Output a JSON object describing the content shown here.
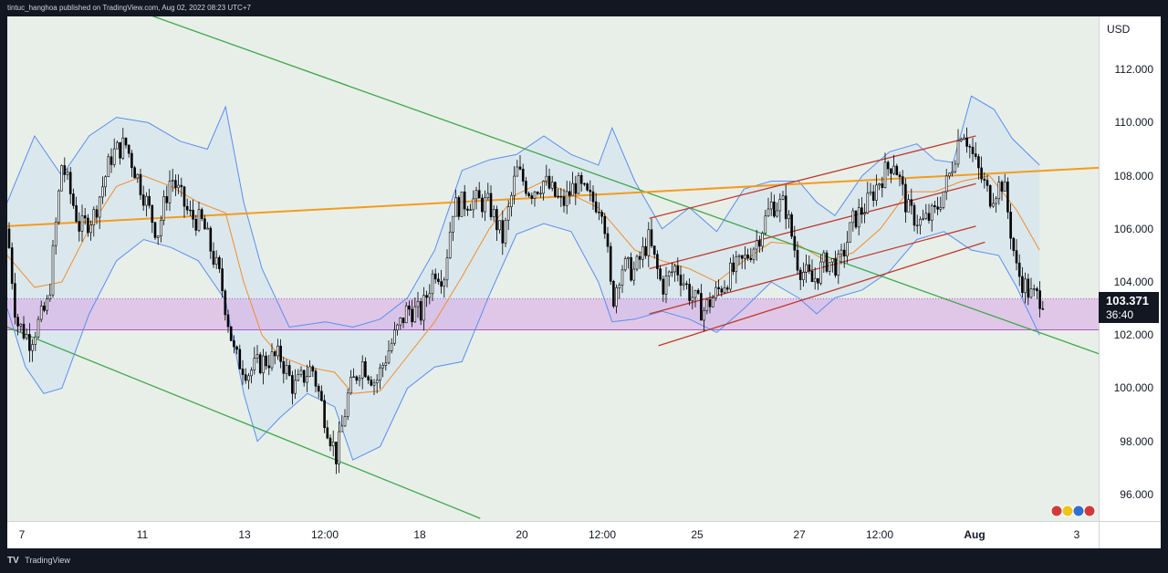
{
  "header": {
    "text": "tintuc_hanghoa published on TradingView.com, Aug 02, 2022 08:23 UTC+7"
  },
  "footer": {
    "logo": "TV",
    "brand": "TradingView"
  },
  "price_axis": {
    "currency": "USD"
  },
  "last_price": {
    "value": "103.371",
    "countdown": "36:40"
  },
  "colors": {
    "candle": "#000000",
    "bollinger": "#5b8def",
    "basis": "#f28c28",
    "green_trend": "#3ea84a",
    "orange_trend": "#f59b1b",
    "red_channel": "#c0392b",
    "zone": "#d9a6e6",
    "band_fill": "#e6eeea"
  },
  "chart_data": {
    "type": "candlestick",
    "ylim": [
      95,
      114
    ],
    "y_ticks": [
      "112.000",
      "110.000",
      "108.000",
      "106.000",
      "104.000",
      "102.000",
      "100.000",
      "98.000",
      "96.000"
    ],
    "x_ticks": [
      {
        "label": "7",
        "bold": false
      },
      {
        "label": "11",
        "bold": false
      },
      {
        "label": "13",
        "bold": false
      },
      {
        "label": "12:00",
        "bold": false
      },
      {
        "label": "18",
        "bold": false
      },
      {
        "label": "20",
        "bold": false
      },
      {
        "label": "12:00",
        "bold": false
      },
      {
        "label": "25",
        "bold": false
      },
      {
        "label": "27",
        "bold": false
      },
      {
        "label": "12:00",
        "bold": false
      },
      {
        "label": "Aug",
        "bold": true
      },
      {
        "label": "3",
        "bold": false
      }
    ],
    "close_path": [
      [
        0.0,
        106.0
      ],
      [
        0.01,
        102.5
      ],
      [
        0.025,
        101.8
      ],
      [
        0.045,
        103.2
      ],
      [
        0.06,
        108.5
      ],
      [
        0.08,
        106.0
      ],
      [
        0.095,
        106.5
      ],
      [
        0.115,
        108.8
      ],
      [
        0.13,
        109.2
      ],
      [
        0.15,
        107.3
      ],
      [
        0.165,
        105.8
      ],
      [
        0.18,
        108.0
      ],
      [
        0.2,
        106.5
      ],
      [
        0.215,
        106.2
      ],
      [
        0.235,
        104.0
      ],
      [
        0.25,
        101.2
      ],
      [
        0.265,
        100.6
      ],
      [
        0.28,
        101.0
      ],
      [
        0.3,
        101.2
      ],
      [
        0.315,
        100.0
      ],
      [
        0.335,
        100.8
      ],
      [
        0.35,
        98.8
      ],
      [
        0.362,
        97.4
      ],
      [
        0.375,
        99.8
      ],
      [
        0.39,
        101.0
      ],
      [
        0.405,
        100.2
      ],
      [
        0.42,
        101.5
      ],
      [
        0.44,
        103.0
      ],
      [
        0.455,
        102.8
      ],
      [
        0.47,
        104.5
      ],
      [
        0.48,
        104.2
      ],
      [
        0.49,
        106.8
      ],
      [
        0.51,
        107.1
      ],
      [
        0.53,
        106.9
      ],
      [
        0.545,
        105.6
      ],
      [
        0.56,
        108.2
      ],
      [
        0.575,
        107.4
      ],
      [
        0.59,
        107.8
      ],
      [
        0.61,
        106.9
      ],
      [
        0.625,
        107.7
      ],
      [
        0.64,
        107.1
      ],
      [
        0.655,
        106.9
      ],
      [
        0.665,
        103.2
      ],
      [
        0.675,
        104.6
      ],
      [
        0.69,
        104.4
      ],
      [
        0.705,
        105.6
      ],
      [
        0.72,
        103.8
      ],
      [
        0.735,
        104.6
      ],
      [
        0.75,
        103.6
      ],
      [
        0.765,
        102.9
      ],
      [
        0.78,
        103.6
      ],
      [
        0.795,
        104.3
      ],
      [
        0.81,
        104.8
      ],
      [
        0.825,
        105.6
      ],
      [
        0.84,
        106.9
      ],
      [
        0.855,
        106.9
      ],
      [
        0.87,
        104.6
      ],
      [
        0.885,
        104.0
      ],
      [
        0.9,
        104.8
      ],
      [
        0.915,
        104.6
      ],
      [
        0.93,
        106.3
      ],
      [
        0.945,
        106.9
      ],
      [
        0.96,
        107.9
      ],
      [
        0.975,
        108.6
      ],
      [
        0.99,
        106.7
      ],
      [
        1.005,
        106.2
      ],
      [
        1.02,
        106.6
      ],
      [
        1.035,
        107.9
      ],
      [
        1.05,
        109.9
      ],
      [
        1.065,
        108.4
      ],
      [
        1.08,
        107.2
      ],
      [
        1.095,
        107.8
      ],
      [
        1.11,
        104.4
      ],
      [
        1.125,
        103.5
      ],
      [
        1.14,
        103.4
      ]
    ],
    "bollinger_upper": [
      [
        0.0,
        107.0
      ],
      [
        0.03,
        109.5
      ],
      [
        0.06,
        108.0
      ],
      [
        0.09,
        109.5
      ],
      [
        0.12,
        110.2
      ],
      [
        0.155,
        110.0
      ],
      [
        0.19,
        109.3
      ],
      [
        0.22,
        109.0
      ],
      [
        0.24,
        110.6
      ],
      [
        0.26,
        107.0
      ],
      [
        0.28,
        104.5
      ],
      [
        0.31,
        102.3
      ],
      [
        0.35,
        102.5
      ],
      [
        0.38,
        102.3
      ],
      [
        0.41,
        102.6
      ],
      [
        0.44,
        103.4
      ],
      [
        0.47,
        105.2
      ],
      [
        0.5,
        108.2
      ],
      [
        0.53,
        108.6
      ],
      [
        0.56,
        108.8
      ],
      [
        0.59,
        109.5
      ],
      [
        0.62,
        108.8
      ],
      [
        0.65,
        108.4
      ],
      [
        0.665,
        109.8
      ],
      [
        0.69,
        107.8
      ],
      [
        0.72,
        106.0
      ],
      [
        0.75,
        106.8
      ],
      [
        0.78,
        105.9
      ],
      [
        0.81,
        107.5
      ],
      [
        0.84,
        107.8
      ],
      [
        0.87,
        107.8
      ],
      [
        0.89,
        107.0
      ],
      [
        0.91,
        106.5
      ],
      [
        0.94,
        108.0
      ],
      [
        0.97,
        108.9
      ],
      [
        1.0,
        109.2
      ],
      [
        1.02,
        108.6
      ],
      [
        1.04,
        108.5
      ],
      [
        1.06,
        111.0
      ],
      [
        1.085,
        110.5
      ],
      [
        1.105,
        109.4
      ],
      [
        1.135,
        108.4
      ]
    ],
    "bollinger_lower": [
      [
        0.0,
        103.0
      ],
      [
        0.02,
        100.8
      ],
      [
        0.04,
        99.8
      ],
      [
        0.06,
        100.0
      ],
      [
        0.09,
        102.8
      ],
      [
        0.12,
        104.8
      ],
      [
        0.15,
        105.6
      ],
      [
        0.18,
        105.3
      ],
      [
        0.21,
        104.8
      ],
      [
        0.24,
        103.3
      ],
      [
        0.26,
        99.8
      ],
      [
        0.275,
        98.0
      ],
      [
        0.3,
        98.9
      ],
      [
        0.33,
        99.8
      ],
      [
        0.36,
        99.3
      ],
      [
        0.38,
        97.3
      ],
      [
        0.41,
        97.8
      ],
      [
        0.44,
        100.0
      ],
      [
        0.47,
        100.8
      ],
      [
        0.5,
        101.0
      ],
      [
        0.53,
        103.5
      ],
      [
        0.56,
        105.8
      ],
      [
        0.59,
        106.2
      ],
      [
        0.62,
        105.9
      ],
      [
        0.65,
        104.0
      ],
      [
        0.665,
        102.5
      ],
      [
        0.69,
        102.6
      ],
      [
        0.72,
        102.9
      ],
      [
        0.75,
        102.6
      ],
      [
        0.78,
        102.1
      ],
      [
        0.81,
        103.0
      ],
      [
        0.84,
        104.0
      ],
      [
        0.87,
        103.4
      ],
      [
        0.89,
        102.8
      ],
      [
        0.91,
        103.4
      ],
      [
        0.94,
        103.7
      ],
      [
        0.97,
        104.4
      ],
      [
        1.0,
        105.6
      ],
      [
        1.03,
        105.9
      ],
      [
        1.06,
        105.2
      ],
      [
        1.09,
        105.0
      ],
      [
        1.11,
        103.8
      ],
      [
        1.135,
        102.0
      ]
    ],
    "bollinger_basis": [
      [
        0.0,
        105.0
      ],
      [
        0.03,
        103.8
      ],
      [
        0.06,
        104.0
      ],
      [
        0.09,
        106.0
      ],
      [
        0.12,
        107.6
      ],
      [
        0.15,
        108.0
      ],
      [
        0.18,
        107.6
      ],
      [
        0.21,
        107.0
      ],
      [
        0.24,
        106.6
      ],
      [
        0.26,
        104.0
      ],
      [
        0.28,
        102.0
      ],
      [
        0.3,
        101.2
      ],
      [
        0.33,
        100.8
      ],
      [
        0.36,
        100.6
      ],
      [
        0.38,
        99.8
      ],
      [
        0.41,
        99.9
      ],
      [
        0.44,
        101.2
      ],
      [
        0.47,
        102.5
      ],
      [
        0.5,
        104.2
      ],
      [
        0.53,
        106.0
      ],
      [
        0.56,
        107.3
      ],
      [
        0.59,
        107.8
      ],
      [
        0.62,
        107.3
      ],
      [
        0.65,
        106.8
      ],
      [
        0.67,
        106.0
      ],
      [
        0.69,
        105.2
      ],
      [
        0.72,
        104.8
      ],
      [
        0.75,
        104.5
      ],
      [
        0.78,
        104.0
      ],
      [
        0.81,
        104.8
      ],
      [
        0.84,
        105.5
      ],
      [
        0.87,
        105.4
      ],
      [
        0.9,
        104.8
      ],
      [
        0.93,
        105.1
      ],
      [
        0.96,
        106.0
      ],
      [
        0.99,
        107.4
      ],
      [
        1.02,
        107.4
      ],
      [
        1.05,
        107.8
      ],
      [
        1.08,
        108.0
      ],
      [
        1.11,
        106.7
      ],
      [
        1.135,
        105.2
      ]
    ],
    "zone": [
      102.2,
      103.371
    ],
    "trendlines": [
      {
        "kind": "green",
        "points": [
          [
            0.12,
            114.5
          ],
          [
            1.2,
            101.3
          ]
        ]
      },
      {
        "kind": "green",
        "points": [
          [
            0.0,
            102.3
          ],
          [
            0.52,
            95.1
          ]
        ]
      },
      {
        "kind": "orange",
        "points": [
          [
            0.0,
            106.1
          ],
          [
            1.2,
            108.3
          ]
        ]
      },
      {
        "kind": "red",
        "points": [
          [
            0.706,
            106.4
          ],
          [
            1.065,
            109.5
          ]
        ]
      },
      {
        "kind": "red",
        "points": [
          [
            0.706,
            104.5
          ],
          [
            1.065,
            107.7
          ]
        ]
      },
      {
        "kind": "red",
        "points": [
          [
            0.706,
            102.8
          ],
          [
            1.065,
            106.1
          ]
        ]
      },
      {
        "kind": "red",
        "points": [
          [
            0.716,
            101.6
          ],
          [
            1.075,
            105.5
          ]
        ]
      }
    ]
  }
}
